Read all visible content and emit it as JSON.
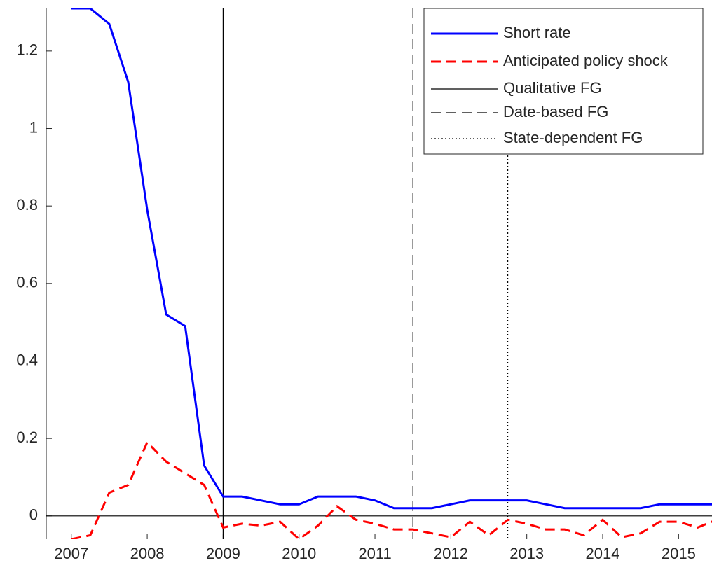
{
  "chart_data": {
    "type": "line",
    "x": [
      2007,
      2007.25,
      2007.5,
      2007.75,
      2008,
      2008.25,
      2008.5,
      2008.75,
      2009,
      2009.25,
      2009.5,
      2009.75,
      2010,
      2010.25,
      2010.5,
      2010.75,
      2011,
      2011.25,
      2011.5,
      2011.75,
      2012,
      2012.25,
      2012.5,
      2012.75,
      2013,
      2013.25,
      2013.5,
      2013.75,
      2014,
      2014.25,
      2014.5,
      2014.75,
      2015,
      2015.25,
      2015.5
    ],
    "series": [
      {
        "name": "Short rate",
        "color": "#0000ff",
        "style": "solid",
        "width": 3,
        "values": [
          1.31,
          1.31,
          1.27,
          1.12,
          0.79,
          0.52,
          0.49,
          0.13,
          0.05,
          0.05,
          0.04,
          0.03,
          0.03,
          0.05,
          0.05,
          0.05,
          0.04,
          0.02,
          0.02,
          0.02,
          0.03,
          0.04,
          0.04,
          0.04,
          0.04,
          0.03,
          0.02,
          0.02,
          0.02,
          0.02,
          0.02,
          0.03,
          0.03,
          0.03,
          0.03
        ]
      },
      {
        "name": "Anticipated policy shock",
        "color": "#ff0000",
        "style": "dashed",
        "width": 3,
        "values": [
          -0.06,
          -0.05,
          0.06,
          0.08,
          0.19,
          0.14,
          0.11,
          0.08,
          -0.03,
          -0.02,
          -0.025,
          -0.015,
          -0.06,
          -0.025,
          0.025,
          -0.01,
          -0.02,
          -0.035,
          -0.035,
          -0.045,
          -0.055,
          -0.015,
          -0.05,
          -0.01,
          -0.02,
          -0.035,
          -0.035,
          -0.05,
          -0.01,
          -0.055,
          -0.045,
          -0.015,
          -0.015,
          -0.03,
          -0.01
        ]
      }
    ],
    "vlines": [
      {
        "name": "Qualitative FG",
        "x": 2009,
        "style": "solid"
      },
      {
        "name": "Date-based FG",
        "x": 2011.5,
        "style": "dashed"
      },
      {
        "name": "State-dependent FG",
        "x": 2012.75,
        "style": "dotted"
      }
    ],
    "hline": 0,
    "xlim": [
      2006.67,
      2015.44
    ],
    "ylim": [
      -0.06,
      1.31
    ],
    "xticks": [
      2007,
      2008,
      2009,
      2010,
      2011,
      2012,
      2013,
      2014,
      2015
    ],
    "yticks": [
      0,
      0.2,
      0.4,
      0.6,
      0.8,
      1,
      1.2
    ],
    "legend": "top-right"
  }
}
